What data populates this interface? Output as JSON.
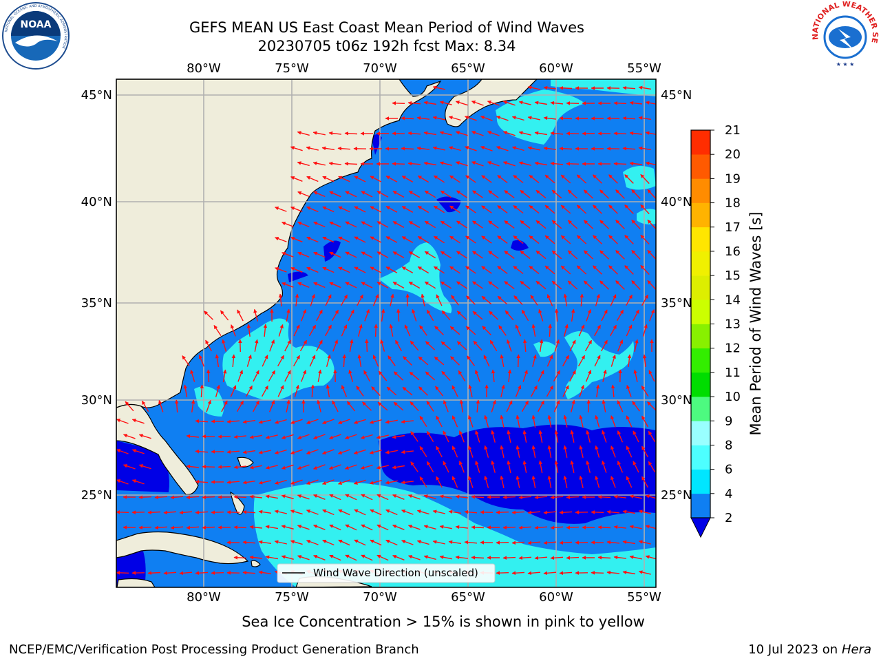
{
  "title": {
    "line1": "GEFS MEAN US East Coast Mean Period of Wind Waves",
    "line2": "20230705 t06z 192h fcst   Max: 8.34"
  },
  "map": {
    "lon_labels": [
      "80°W",
      "75°W",
      "70°W",
      "65°W",
      "60°W",
      "55°W"
    ],
    "lat_labels": [
      "45°N",
      "40°N",
      "35°N",
      "30°N",
      "25°N"
    ],
    "legend_label": "Wind Wave Direction (unscaled)",
    "colors": {
      "land": "#efeddb",
      "ocean_2_4": "#0f7ff2",
      "ocean_lt_2": "#0000e6",
      "ocean_4_6": "#33f0f0",
      "arrow": "#ff1010",
      "grid": "#b0b0b0"
    }
  },
  "colorbar": {
    "label": "Mean Period of Wind Waves [s]",
    "ticks": [
      "2",
      "4",
      "6",
      "8",
      "9",
      "10",
      "11",
      "12",
      "13",
      "14",
      "15",
      "16",
      "17",
      "18",
      "19",
      "20",
      "21"
    ],
    "colors": [
      "#0f7ff2",
      "#00e6ff",
      "#4dffff",
      "#99ffff",
      "#4dfa80",
      "#00dd00",
      "#33ee00",
      "#88f000",
      "#ccff00",
      "#ddee00",
      "#f0f000",
      "#ffe600",
      "#ffb300",
      "#ff8c00",
      "#ff5a00",
      "#ff2d00",
      "#ff0000"
    ],
    "under_color": "#0000e6"
  },
  "logos": {
    "noaa_text": "NOAA",
    "noaa_ring": "NATIONAL OCEANIC AND ATMOSPHERIC ADMINISTRATION",
    "noaa_ring_bottom": "U.S. DEPARTMENT OF COMMERCE",
    "nws_ring": "NATIONAL WEATHER SERVICE"
  },
  "caption": "Sea Ice Concentration > 15% is shown in pink to yellow",
  "credit_left": "NCEP/EMC/Verification Post Processing Product Generation Branch",
  "credit_right_prefix": "10 Jul 2023 on ",
  "credit_right_host": "Hera"
}
